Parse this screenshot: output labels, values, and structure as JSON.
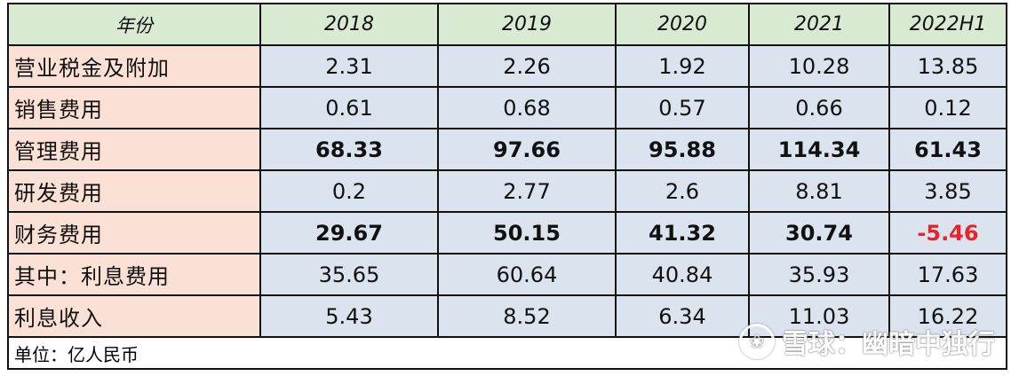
{
  "table": {
    "header": {
      "label": "年份",
      "years": [
        "2018",
        "2019",
        "2020",
        "2021",
        "2022H1"
      ]
    },
    "rows": [
      {
        "label": "营业税金及附加",
        "values": [
          "2.31",
          "2.26",
          "1.92",
          "10.28",
          "13.85"
        ],
        "bold": false
      },
      {
        "label": "销售费用",
        "values": [
          "0.61",
          "0.68",
          "0.57",
          "0.66",
          "0.12"
        ],
        "bold": false
      },
      {
        "label": "管理费用",
        "values": [
          "68.33",
          "97.66",
          "95.88",
          "114.34",
          "61.43"
        ],
        "bold": true
      },
      {
        "label": "研发费用",
        "values": [
          "0.2",
          "2.77",
          "2.6",
          "8.81",
          "3.85"
        ],
        "bold": false
      },
      {
        "label": "财务费用",
        "values": [
          "29.67",
          "50.15",
          "41.32",
          "30.74",
          "-5.46"
        ],
        "bold": true
      },
      {
        "label": "其中：利息费用",
        "values": [
          "35.65",
          "60.64",
          "40.84",
          "35.93",
          "17.63"
        ],
        "bold": false
      },
      {
        "label": "利息收入",
        "values": [
          "5.43",
          "8.52",
          "6.34",
          "11.03",
          "16.22"
        ],
        "bold": false
      }
    ],
    "unit_note": "单位：亿人民币"
  },
  "colors": {
    "header_bg": "#d9ead3",
    "label_bg": "#fbe1d5",
    "value_bg": "#dbe3ef",
    "negative": "#e8232a"
  },
  "watermark": {
    "logo_glyph": "❀",
    "text": "雪球：幽暗中独行"
  }
}
